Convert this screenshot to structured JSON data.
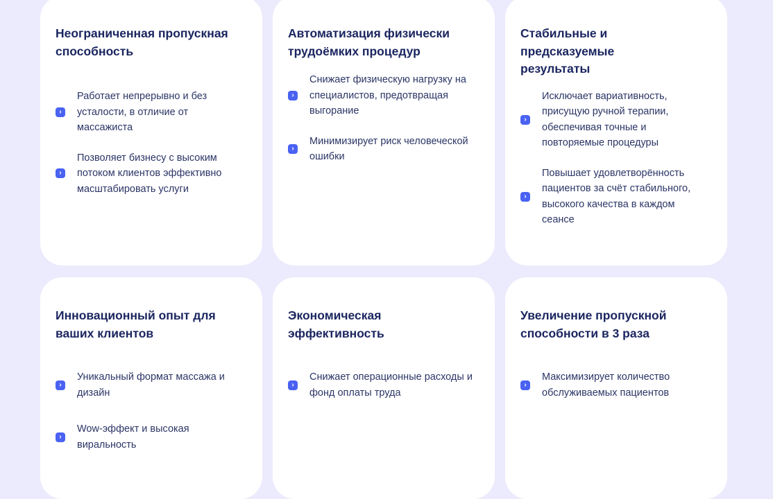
{
  "accent_color": "#4A62F2",
  "bullet_icon": "chevron-right-icon",
  "cards": [
    {
      "title": "Неограниченная пропускная способность",
      "items": [
        "Работает непрерывно и без усталости, в отличие от массажиста",
        "Позволяет бизнесу с высоким потоком клиентов эффективно масштабировать услуги"
      ]
    },
    {
      "title": "Автоматизация физически трудоёмких процедур",
      "items": [
        "Снижает физическую нагрузку на специалистов, предотвращая выгорание",
        "Минимизирует риск человеческой ошибки"
      ]
    },
    {
      "title": "Стабильные и предсказуемые результаты",
      "items": [
        "Исключает вариативность, присущую ручной терапии, обеспечивая точные и повторяемые процедуры",
        "Повышает удовлетворённость пациентов за счёт стабильного, высокого качества в каждом сеансе"
      ]
    },
    {
      "title": "Инновационный опыт для ваших клиентов",
      "items": [
        "Уникальный формат массажа и дизайн",
        "Wow-эффект и высокая виральность"
      ]
    },
    {
      "title": "Экономическая эффективность",
      "items": [
        "Снижает операционные расходы и фонд оплаты труда"
      ]
    },
    {
      "title": "Увеличение пропускной способности в 3 раза",
      "items": [
        "Максимизирует количество обслуживаемых пациентов"
      ]
    }
  ]
}
